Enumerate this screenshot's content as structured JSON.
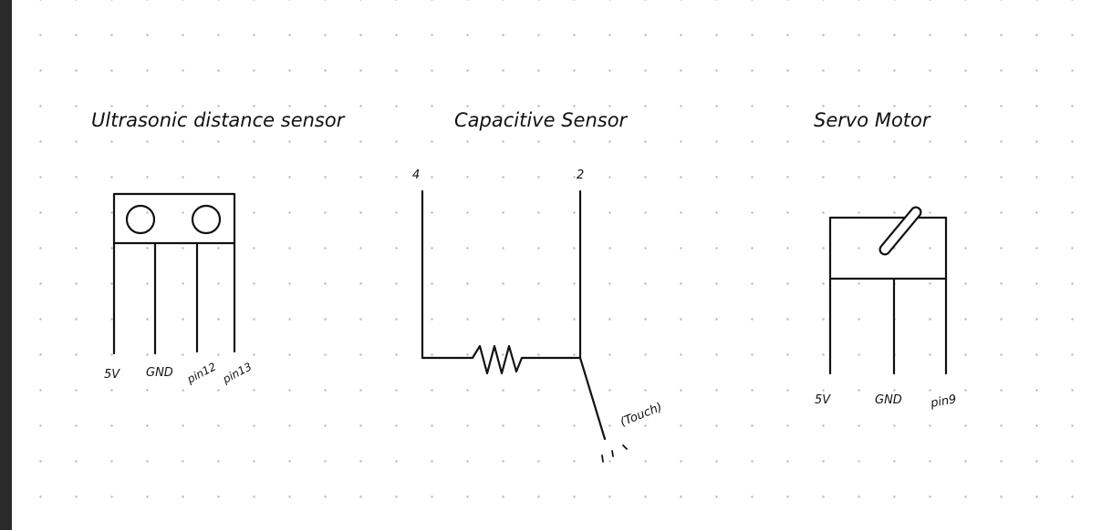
{
  "colors": {
    "ink": "#111111",
    "background": "#ffffff",
    "grid_dots": "#bdbdbd",
    "left_rail": "#2a2a2a"
  },
  "sensors": {
    "ultrasonic": {
      "title": "Ultrasonic distance sensor",
      "pins": [
        "5V",
        "GND",
        "pin12",
        "pin13"
      ]
    },
    "capacitive": {
      "title": "Capacitive Sensor",
      "pin_left": "4",
      "pin_right": "2",
      "touch_label": "(Touch)"
    },
    "servo": {
      "title": "Servo Motor",
      "pins": [
        "5V",
        "GND",
        "pin9"
      ]
    }
  }
}
